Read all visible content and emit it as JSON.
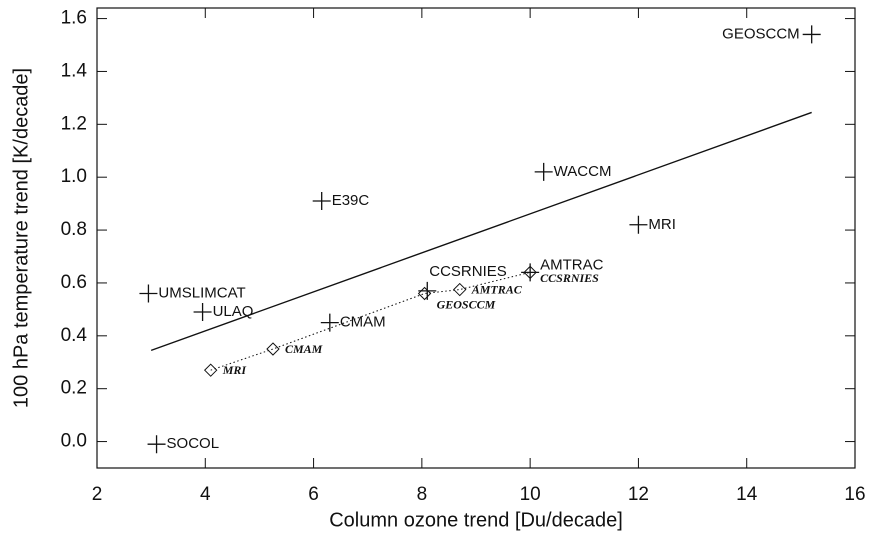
{
  "chart_data": {
    "type": "scatter",
    "xlabel": "Column ozone trend [Du/decade]",
    "ylabel": "100 hPa temperature trend [K/decade]",
    "xlim": [
      2,
      16
    ],
    "xticks": [
      2,
      4,
      6,
      8,
      10,
      12,
      14,
      16
    ],
    "ylim": [
      -0.1,
      1.64
    ],
    "yticks": [
      {
        "value": 0,
        "label": "0.0"
      },
      0.2,
      0.4,
      0.6,
      0.8,
      {
        "value": 1,
        "label": "1.0"
      },
      1.2,
      1.4,
      1.6
    ],
    "points": {
      "labels": [
        "GEOSCCM",
        "WACCM",
        "MRI",
        "E39C",
        "AMTRAC",
        "CCSRNIES",
        "UMSLIMCAT",
        "ULAQ",
        "CMAM",
        "SOCOL"
      ],
      "x": [
        15.2,
        10.25,
        12.0,
        6.15,
        10.0,
        8.1,
        2.95,
        3.95,
        6.3,
        3.1
      ],
      "values": [
        1.54,
        1.02,
        0.82,
        0.91,
        0.64,
        0.57,
        0.56,
        0.49,
        0.45,
        -0.01
      ]
    },
    "diamonds": {
      "labels": [
        "MRI",
        "CMAM",
        "GEOSCCM",
        "AMTRAC",
        "CCSRNIES"
      ],
      "x": [
        4.1,
        5.25,
        8.05,
        8.7,
        10.0
      ],
      "values": [
        0.27,
        0.35,
        0.56,
        0.575,
        0.64
      ]
    },
    "fit": {
      "x": [
        3.0,
        15.2
      ],
      "values": [
        0.345,
        1.245
      ]
    }
  }
}
